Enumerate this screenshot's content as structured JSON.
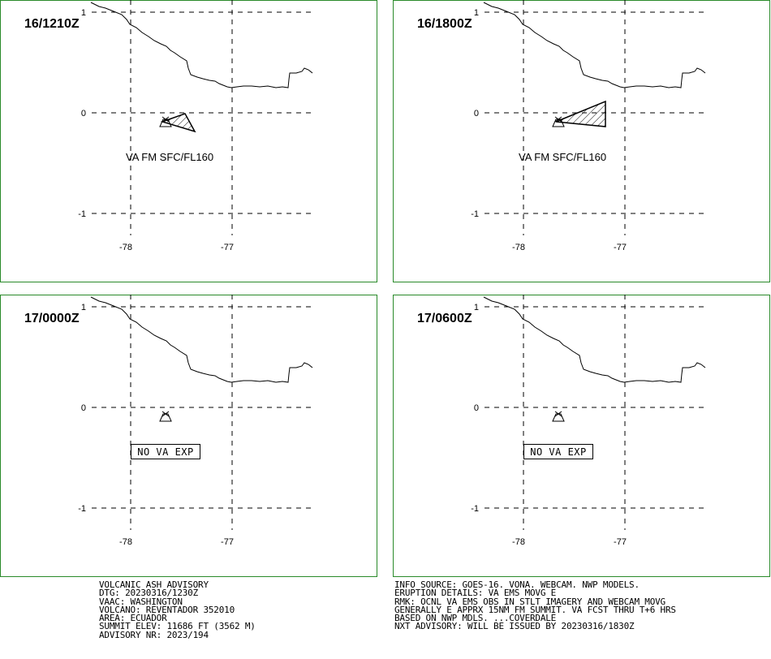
{
  "panels": [
    {
      "time": "16/1210Z",
      "lat_labels": [
        "1",
        "0",
        "-1"
      ],
      "lon_labels": [
        "-78",
        "-77"
      ],
      "annotation": "VA FM SFC/FL160"
    },
    {
      "time": "16/1800Z",
      "lat_labels": [
        "1",
        "0",
        "-1"
      ],
      "lon_labels": [
        "-78",
        "-77"
      ],
      "annotation": "VA FM SFC/FL160"
    },
    {
      "time": "17/0000Z",
      "lat_labels": [
        "1",
        "0",
        "-1"
      ],
      "lon_labels": [
        "-78",
        "-77"
      ],
      "annotation": "NO VA EXP"
    },
    {
      "time": "17/0600Z",
      "lat_labels": [
        "1",
        "0",
        "-1"
      ],
      "lon_labels": [
        "-78",
        "-77"
      ],
      "annotation": "NO VA EXP"
    }
  ],
  "footer": {
    "left": [
      "VOLCANIC ASH ADVISORY",
      "DTG: 20230316/1230Z",
      "VAAC: WASHINGTON",
      "VOLCANO: REVENTADOR 352010",
      "AREA: ECUADOR",
      "SUMMIT ELEV: 11686 FT (3562 M)",
      "ADVISORY NR: 2023/194"
    ],
    "right": [
      "INFO SOURCE: GOES-16. VONA. WEBCAM. NWP MODELS.",
      "ERUPTION DETAILS: VA EMS MOVG E",
      "RMK: OCNL VA EMS OBS IN STLT IMAGERY AND WEBCAM MOVG",
      "GENERALLY E APPRX 15NM FM SUMMIT. VA FCST THRU T+6 HRS",
      "BASED ON NWP MDLS. ...COVERDALE",
      "NXT ADVISORY: WILL BE ISSUED BY 20230316/1830Z"
    ]
  }
}
